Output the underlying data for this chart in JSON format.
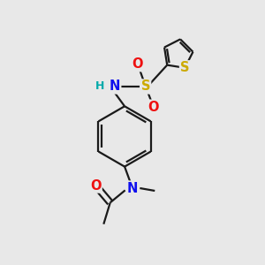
{
  "bg_color": "#e8e8e8",
  "bond_color": "#1a1a1a",
  "bond_width": 1.6,
  "atom_colors": {
    "N": "#1010ee",
    "O": "#ee1010",
    "S_sulfonyl": "#ccaa00",
    "S_thiophene": "#ccaa00",
    "H": "#00aaaa"
  },
  "font_size": 10.5,
  "fig_size": [
    3.0,
    3.0
  ],
  "dpi": 100
}
